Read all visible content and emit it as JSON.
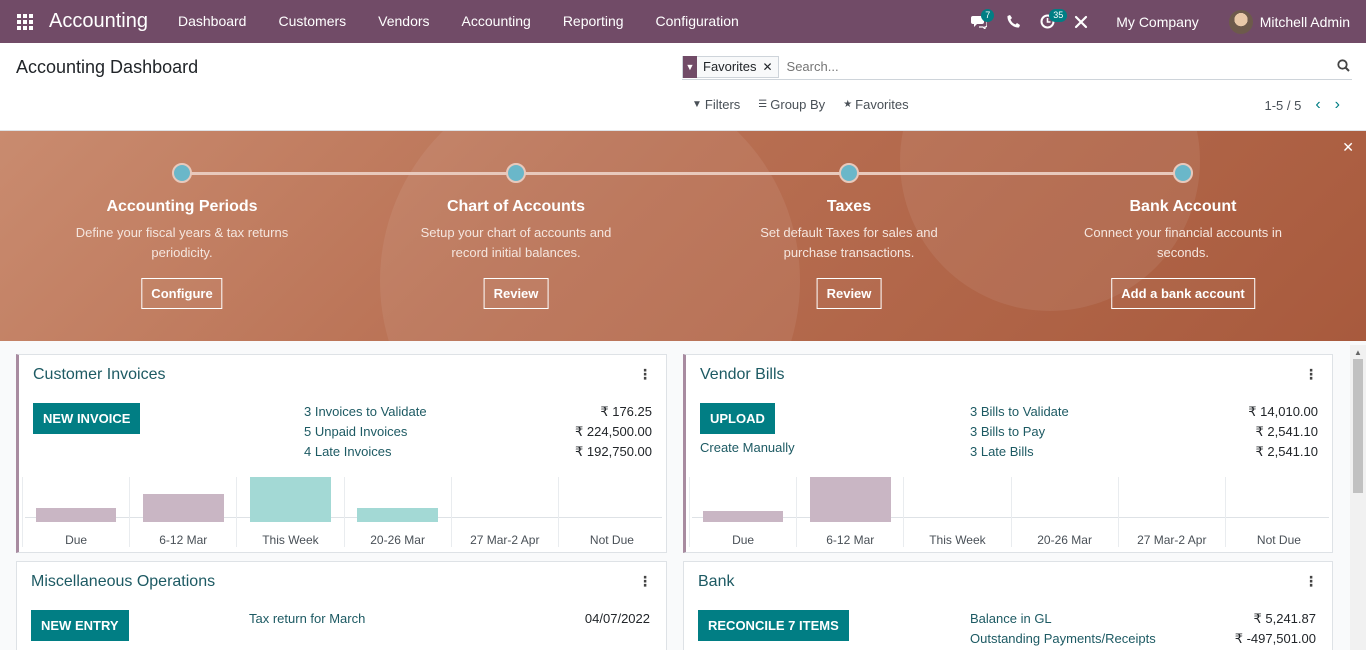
{
  "topbar": {
    "app_name": "Accounting",
    "menu": [
      "Dashboard",
      "Customers",
      "Vendors",
      "Accounting",
      "Reporting",
      "Configuration"
    ],
    "messages_count": "7",
    "activities_count": "35",
    "company": "My Company",
    "user": "Mitchell Admin",
    "bg_color": "#714B67"
  },
  "control": {
    "title": "Accounting Dashboard",
    "facet": "Favorites",
    "search_placeholder": "Search...",
    "filters": "Filters",
    "group_by": "Group By",
    "favorites": "Favorites",
    "pager": "1-5 / 5"
  },
  "banner": {
    "steps": [
      {
        "title": "Accounting Periods",
        "desc": "Define your fiscal years & tax returns periodicity.",
        "button": "Configure"
      },
      {
        "title": "Chart of Accounts",
        "desc": "Setup your chart of accounts and record initial balances.",
        "button": "Review"
      },
      {
        "title": "Taxes",
        "desc": "Set default Taxes for sales and purchase transactions.",
        "button": "Review"
      },
      {
        "title": "Bank Account",
        "desc": "Connect your financial accounts in seconds.",
        "button": "Add a bank account"
      }
    ]
  },
  "customer_invoices": {
    "title": "Customer Invoices",
    "button": "NEW INVOICE",
    "stats": [
      {
        "label": "3 Invoices to Validate",
        "amount": "₹ 176.25"
      },
      {
        "label": "5 Unpaid Invoices",
        "amount": "₹ 224,500.00"
      },
      {
        "label": "4 Late Invoices",
        "amount": "₹ 192,750.00"
      }
    ]
  },
  "vendor_bills": {
    "title": "Vendor Bills",
    "button": "UPLOAD",
    "secondary": "Create Manually",
    "stats": [
      {
        "label": "3 Bills to Validate",
        "amount": "₹ 14,010.00"
      },
      {
        "label": "3 Bills to Pay",
        "amount": "₹ 2,541.10"
      },
      {
        "label": "3 Late Bills",
        "amount": "₹ 2,541.10"
      }
    ]
  },
  "misc_operations": {
    "title": "Miscellaneous Operations",
    "button": "NEW ENTRY",
    "item_label": "Tax return for March",
    "item_date": "04/07/2022"
  },
  "bank": {
    "title": "Bank",
    "button": "RECONCILE 7 ITEMS",
    "stats": [
      {
        "label": "Balance in GL",
        "amount": "₹ 5,241.87"
      },
      {
        "label": "Outstanding Payments/Receipts",
        "amount": "₹ -497,501.00"
      }
    ]
  },
  "chart_data": [
    {
      "type": "bar",
      "categories": [
        "Due",
        "6-12 Mar",
        "This Week",
        "20-26 Mar",
        "27 Mar-2 Apr",
        "Not Due"
      ],
      "values": [
        14,
        28,
        45,
        14,
        0,
        0
      ],
      "colors": [
        "#c9b6c4",
        "#c9b6c4",
        "#a3d9d5",
        "#a3d9d5",
        "#a3d9d5",
        "#a3d9d5"
      ]
    },
    {
      "type": "bar",
      "categories": [
        "Due",
        "6-12 Mar",
        "This Week",
        "20-26 Mar",
        "27 Mar-2 Apr",
        "Not Due"
      ],
      "values": [
        11,
        45,
        0,
        0,
        0,
        0
      ],
      "colors": [
        "#c9b6c4",
        "#c9b6c4",
        "#a3d9d5",
        "#a3d9d5",
        "#a3d9d5",
        "#a3d9d5"
      ]
    }
  ]
}
